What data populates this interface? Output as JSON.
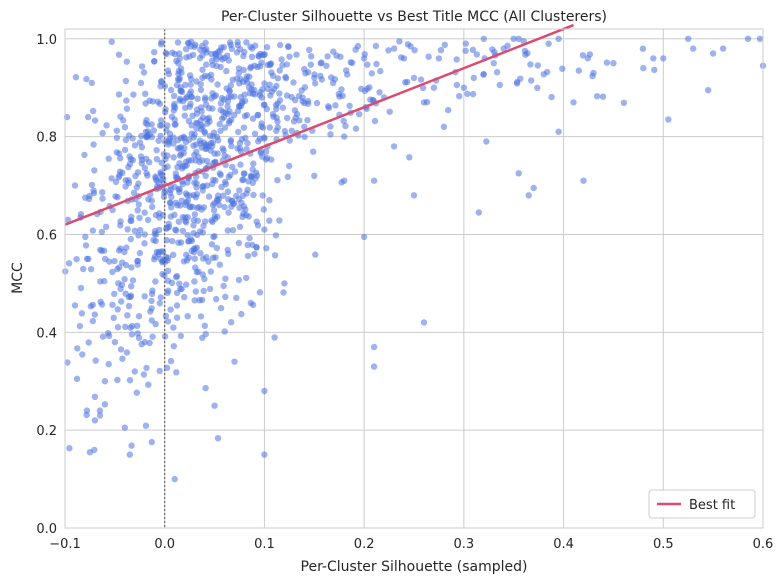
{
  "chart_data": {
    "type": "scatter",
    "title": "Per-Cluster Silhouette vs Best Title MCC (All Clusterers)",
    "xlabel": "Per-Cluster Silhouette (sampled)",
    "ylabel": "MCC",
    "xlim": [
      -0.1,
      0.6
    ],
    "ylim": [
      0.0,
      1.02
    ],
    "xticks": [
      "−0.1",
      "0.0",
      "0.1",
      "0.2",
      "0.3",
      "0.4",
      "0.5",
      "0.6"
    ],
    "yticks": [
      "0.0",
      "0.2",
      "0.4",
      "0.6",
      "0.8",
      "1.0"
    ],
    "grid": true,
    "reference_line": {
      "x": 0.0,
      "style": "dotted"
    },
    "fit_line": {
      "label": "Best fit",
      "slope": 0.8,
      "intercept": 0.7,
      "x_range": [
        -0.1,
        0.41
      ]
    },
    "legend": {
      "position": "lower-right",
      "entries": [
        "Best fit"
      ]
    },
    "colors": {
      "points": "#4c72e0",
      "fit": "#dc4a6e",
      "grid": "#cccccc"
    },
    "clusters": [
      {
        "xc": 0.03,
        "yc": 0.76,
        "sx": 0.045,
        "sy": 0.14,
        "n": 560
      },
      {
        "xc": 0.0,
        "yc": 0.6,
        "sx": 0.04,
        "sy": 0.15,
        "n": 220
      },
      {
        "xc": 0.12,
        "yc": 0.9,
        "sx": 0.055,
        "sy": 0.06,
        "n": 180
      },
      {
        "xc": 0.3,
        "yc": 0.94,
        "sx": 0.08,
        "sy": 0.05,
        "n": 70
      },
      {
        "xc": -0.05,
        "yc": 0.42,
        "sx": 0.025,
        "sy": 0.12,
        "n": 60
      }
    ],
    "points": [
      [
        -0.098,
        0.84
      ],
      [
        -0.097,
        0.63
      ],
      [
        -0.09,
        0.7
      ],
      [
        -0.09,
        0.455
      ],
      [
        -0.088,
        0.305
      ],
      [
        -0.075,
        0.155
      ],
      [
        -0.078,
        0.24
      ],
      [
        -0.07,
        0.22
      ],
      [
        -0.065,
        0.24
      ],
      [
        -0.04,
        0.205
      ],
      [
        -0.035,
        0.15
      ],
      [
        -0.03,
        0.32
      ],
      [
        -0.05,
        0.38
      ],
      [
        -0.06,
        0.3
      ],
      [
        -0.02,
        0.38
      ],
      [
        0.01,
        0.1
      ],
      [
        0.05,
        0.25
      ],
      [
        0.07,
        0.34
      ],
      [
        0.1,
        0.15
      ],
      [
        0.1,
        0.28
      ],
      [
        0.21,
        0.33
      ],
      [
        0.21,
        0.37
      ],
      [
        0.26,
        0.42
      ],
      [
        0.315,
        0.645
      ],
      [
        0.355,
        0.725
      ],
      [
        0.365,
        0.68
      ],
      [
        0.37,
        0.695
      ],
      [
        0.395,
        0.81
      ],
      [
        0.42,
        0.71
      ],
      [
        0.41,
        0.87
      ],
      [
        0.43,
        0.93
      ],
      [
        0.45,
        0.95
      ],
      [
        0.48,
        0.94
      ],
      [
        0.49,
        0.96
      ],
      [
        0.5,
        0.96
      ],
      [
        0.505,
        0.835
      ],
      [
        0.525,
        1.0
      ],
      [
        0.53,
        0.98
      ],
      [
        0.545,
        0.895
      ],
      [
        0.55,
        0.97
      ],
      [
        0.56,
        0.98
      ],
      [
        0.585,
        1.0
      ],
      [
        0.597,
        1.0
      ],
      [
        0.6,
        0.945
      ],
      [
        0.35,
        1.0
      ],
      [
        0.355,
        1.0
      ],
      [
        0.36,
        0.995
      ],
      [
        0.385,
        0.99
      ],
      [
        0.395,
        1.0
      ],
      [
        0.32,
        1.0
      ],
      [
        0.3,
        0.9
      ],
      [
        0.31,
        0.92
      ],
      [
        0.275,
        0.96
      ],
      [
        0.27,
        0.9
      ],
      [
        0.25,
        0.68
      ],
      [
        0.22,
        0.88
      ],
      [
        0.24,
        0.96
      ],
      [
        0.2,
        0.96
      ],
      [
        0.18,
        0.71
      ],
      [
        0.21,
        0.71
      ],
      [
        0.15,
        0.72
      ],
      [
        0.14,
        0.82
      ],
      [
        0.25,
        0.92
      ],
      [
        0.26,
        0.87
      ],
      [
        0.23,
        0.98
      ],
      [
        0.2,
        0.595
      ],
      [
        0.23,
        0.78
      ],
      [
        0.28,
        0.82
      ],
      [
        0.09,
        0.56
      ],
      [
        0.12,
        0.5
      ],
      [
        0.1,
        0.61
      ],
      [
        0.105,
        0.67
      ],
      [
        0.18,
        0.8
      ],
      [
        0.33,
        0.95
      ],
      [
        0.34,
        0.98
      ]
    ]
  }
}
